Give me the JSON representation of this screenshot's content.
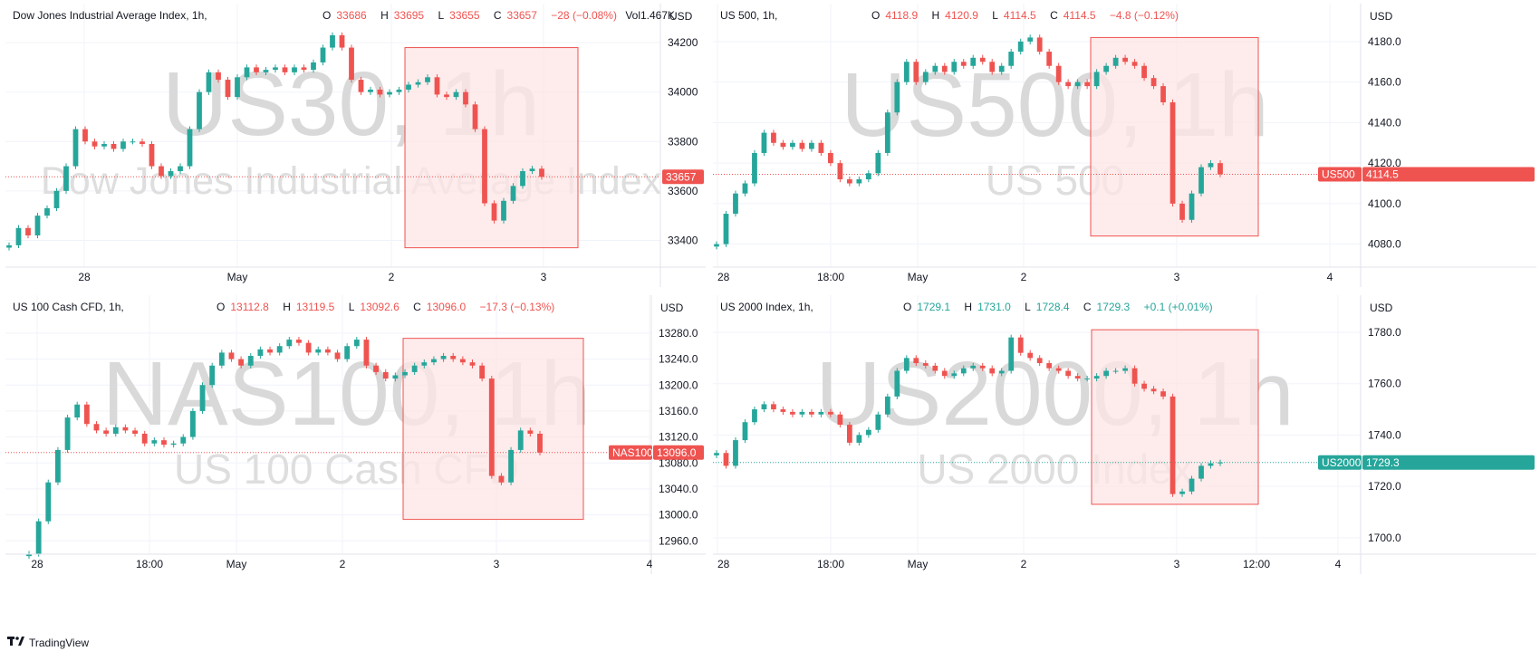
{
  "footer": {
    "brand": "TradingView",
    "logo_icon": "tradingview-logo-icon"
  },
  "colors": {
    "up": "#26a69a",
    "down": "#ef5350",
    "highlight_fill": "#fde4e4",
    "highlight_stroke": "#ef5350",
    "grid": "#f0f3fa"
  },
  "panels": [
    {
      "header": {
        "title": "Dow Jones Industrial Average Index, 1h,",
        "o": "33686",
        "h": "33695",
        "l": "33655",
        "c": "33657",
        "chg": "−28 (−0.08%)",
        "vol": "Vol1.467K",
        "dir": "dn"
      },
      "chart_data": {
        "type": "candlestick",
        "currency": "USD",
        "watermark": "US30, 1h",
        "watermark_sub": "Dow Jones Industrial Average Index",
        "y_ticks": [
          "33400",
          "33600",
          "33800",
          "34000",
          "34200"
        ],
        "x_ticks": [
          "28",
          "May",
          "2",
          "3"
        ],
        "ylim": [
          33310,
          34270
        ],
        "last_label": "",
        "last_price": "33657",
        "last_value": 33657,
        "last_dir": "dn",
        "highlight": [
          [
            33370,
            34180
          ]
        ],
        "points": [
          33380,
          33450,
          33420,
          33500,
          33530,
          33600,
          33700,
          33850,
          33800,
          33780,
          33790,
          33770,
          33800,
          33800,
          33790,
          33700,
          33660,
          33680,
          33700,
          33850,
          34000,
          34080,
          34050,
          33980,
          34060,
          34100,
          34080,
          34090,
          34100,
          34080,
          34100,
          34090,
          34120,
          34180,
          34230,
          34180,
          34050,
          34000,
          34010,
          33990,
          34000,
          34010,
          34030,
          34040,
          34060,
          33990,
          33980,
          34000,
          33950,
          33850,
          33550,
          33480,
          33560,
          33620,
          33680,
          33690,
          33657
        ]
      }
    },
    {
      "header": {
        "title": "US 500, 1h,",
        "o": "4118.9",
        "h": "4120.9",
        "l": "4114.5",
        "c": "4114.5",
        "chg": "−4.8 (−0.12%)",
        "vol": "",
        "dir": "dn"
      },
      "chart_data": {
        "type": "candlestick",
        "currency": "USD",
        "watermark": "US500, 1h",
        "watermark_sub": "US 500",
        "y_ticks": [
          "4080.0",
          "4100.0",
          "4120.0",
          "4140.0",
          "4160.0",
          "4180.0"
        ],
        "x_ticks": [
          "28",
          "18:00",
          "May",
          "2",
          "3",
          "4"
        ],
        "ylim": [
          4070,
          4188
        ],
        "last_label": "US500",
        "last_price": "4114.5",
        "last_value": 4114.5,
        "last_dir": "dn",
        "highlight": [
          [
            4084,
            4182
          ]
        ],
        "points": [
          4080,
          4095,
          4105,
          4110,
          4125,
          4135,
          4130,
          4128,
          4130,
          4127,
          4130,
          4125,
          4120,
          4112,
          4110,
          4112,
          4115,
          4125,
          4145,
          4160,
          4170,
          4160,
          4165,
          4168,
          4165,
          4170,
          4168,
          4172,
          4170,
          4165,
          4168,
          4175,
          4180,
          4182,
          4175,
          4168,
          4160,
          4158,
          4160,
          4158,
          4165,
          4168,
          4172,
          4170,
          4168,
          4162,
          4158,
          4150,
          4100,
          4092,
          4105,
          4118,
          4120,
          4114.5
        ]
      }
    },
    {
      "header": {
        "title": "US 100 Cash CFD, 1h,",
        "o": "13112.8",
        "h": "13119.5",
        "l": "13092.6",
        "c": "13096.0",
        "chg": "−17.3 (−0.13%)",
        "vol": "",
        "dir": "dn"
      },
      "chart_data": {
        "type": "candlestick",
        "currency": "USD",
        "watermark": "NAS100, 1h",
        "watermark_sub": "US 100 Cash CFD",
        "y_ticks": [
          "12960.0",
          "13000.0",
          "13040.0",
          "13080.0",
          "13120.0",
          "13160.0",
          "13200.0",
          "13240.0",
          "13280.0"
        ],
        "x_ticks": [
          "28",
          "18:00",
          "May",
          "2",
          "3",
          "4"
        ],
        "ylim": [
          12945,
          13305
        ],
        "last_label": "NAS100",
        "last_price": "13096.0",
        "last_value": 13096,
        "last_dir": "dn",
        "highlight": [
          [
            12993,
            13272
          ]
        ],
        "points": [
          12940,
          12990,
          13050,
          13100,
          13150,
          13170,
          13140,
          13130,
          13125,
          13135,
          13130,
          13125,
          13110,
          13115,
          13108,
          13110,
          13120,
          13160,
          13200,
          13230,
          13250,
          13240,
          13230,
          13245,
          13255,
          13250,
          13260,
          13270,
          13265,
          13250,
          13255,
          13250,
          13240,
          13260,
          13270,
          13230,
          13220,
          13210,
          13215,
          13220,
          13230,
          13235,
          13240,
          13245,
          13240,
          13235,
          13230,
          13210,
          13060,
          13050,
          13100,
          13130,
          13125,
          13096
        ]
      }
    },
    {
      "header": {
        "title": "US 2000 Index, 1h,",
        "o": "1729.1",
        "h": "1731.0",
        "l": "1728.4",
        "c": "1729.3",
        "chg": "+0.1 (+0.01%)",
        "vol": "",
        "dir": "up"
      },
      "chart_data": {
        "type": "candlestick",
        "currency": "USD",
        "watermark": "US2000, 1h",
        "watermark_sub": "US 2000 Index",
        "y_ticks": [
          "1700.0",
          "1720.0",
          "1740.0",
          "1760.0",
          "1780.0"
        ],
        "x_ticks": [
          "28",
          "18:00",
          "May",
          "2",
          "3",
          "12:00",
          "4"
        ],
        "ylim": [
          1695,
          1786
        ],
        "last_label": "US2000",
        "last_price": "1729.3",
        "last_value": 1729.3,
        "last_dir": "up",
        "highlight": [
          [
            1713,
            1781
          ]
        ],
        "points": [
          1733,
          1728,
          1738,
          1745,
          1750,
          1752,
          1750,
          1749,
          1748,
          1749,
          1748,
          1749,
          1748,
          1744,
          1737,
          1740,
          1742,
          1748,
          1755,
          1765,
          1770,
          1768,
          1767,
          1765,
          1763,
          1764,
          1766,
          1767,
          1766,
          1764,
          1765,
          1778,
          1772,
          1770,
          1768,
          1766,
          1765,
          1763,
          1762,
          1762,
          1763,
          1765,
          1765,
          1766,
          1760,
          1758,
          1757,
          1755,
          1717,
          1718,
          1723,
          1728,
          1729,
          1729.3
        ]
      }
    }
  ]
}
